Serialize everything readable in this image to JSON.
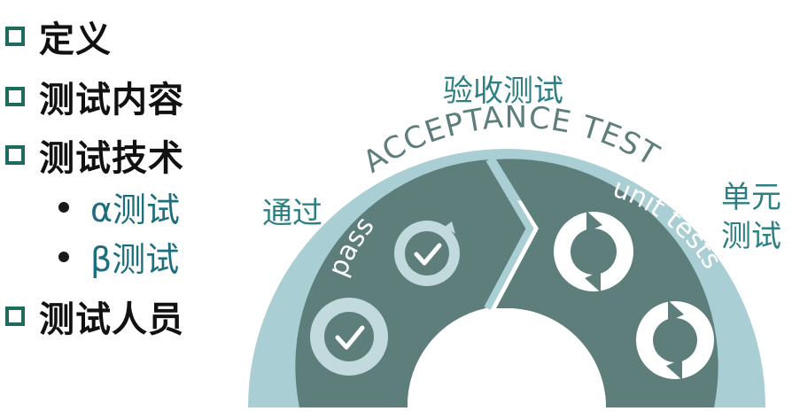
{
  "outline": {
    "items": [
      {
        "label": "定义"
      },
      {
        "label": "测试内容"
      },
      {
        "label": "测试技术"
      },
      {
        "label": "测试人员"
      }
    ],
    "sub_items": [
      {
        "label": "α测试"
      },
      {
        "label": "β测试"
      }
    ]
  },
  "diagram": {
    "top_label_cn": "验收测试",
    "arc_title": "ACCEPTANCE TEST",
    "left_label_cn": "通过",
    "right_label_cn_line1": "单元",
    "right_label_cn_line2": "测试",
    "pass_label": "pass",
    "unit_label": "unit tests",
    "colors": {
      "outer_band": "#a9ced3",
      "dark_segment": "#5e7e7c",
      "light_segment": "#c2dadd",
      "label_teal": "#2e7f84",
      "bullet_teal": "#1d6b5c"
    }
  }
}
